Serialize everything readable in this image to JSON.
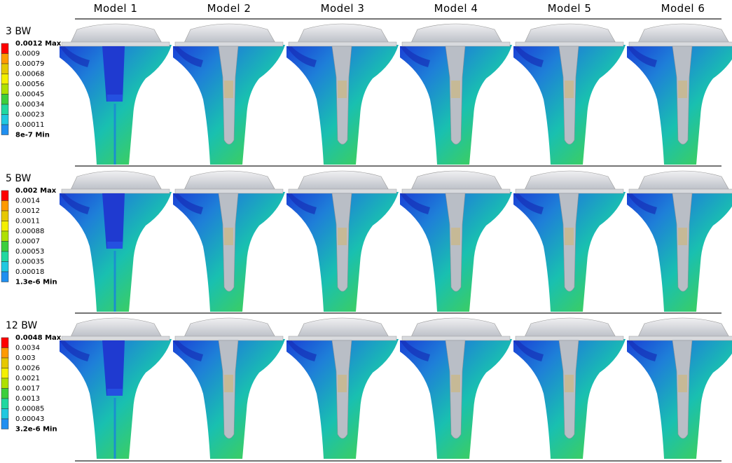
{
  "columns": [
    "Model 1",
    "Model 2",
    "Model 3",
    "Model 4",
    "Model 5",
    "Model 6"
  ],
  "rows": [
    {
      "label": "3 BW",
      "legend": [
        "0.0012 Max",
        "0.0009",
        "0.00079",
        "0.00068",
        "0.00056",
        "0.00045",
        "0.00034",
        "0.00023",
        "0.00011",
        "8e-7 Min"
      ]
    },
    {
      "label": "5 BW",
      "legend": [
        "0.002 Max",
        "0.0014",
        "0.0012",
        "0.0011",
        "0.00088",
        "0.0007",
        "0.00053",
        "0.00035",
        "0.00018",
        "1.3e-6 Min"
      ]
    },
    {
      "label": "12 BW",
      "legend": [
        "0.0048 Max",
        "0.0034",
        "0.003",
        "0.0026",
        "0.0021",
        "0.0017",
        "0.0013",
        "0.00085",
        "0.00043",
        "3.2e-6 Min"
      ]
    }
  ]
}
